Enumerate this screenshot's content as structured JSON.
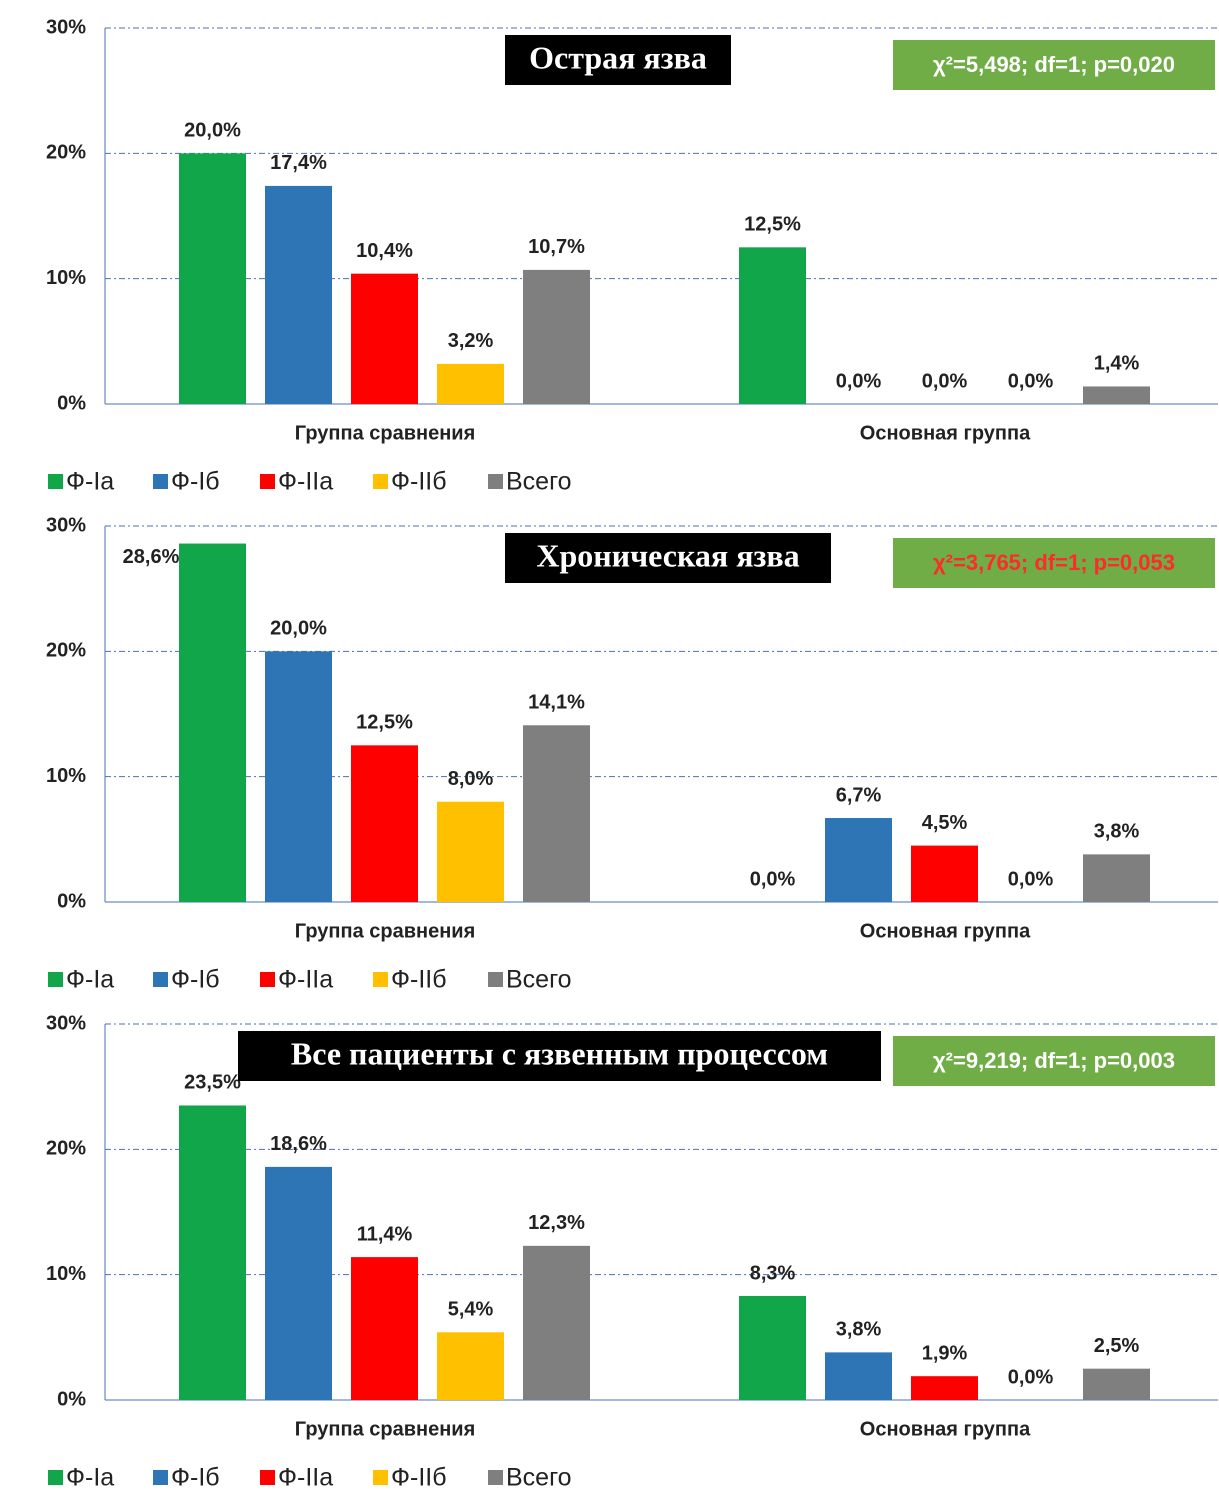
{
  "chart_data": [
    {
      "type": "bar",
      "title": "Острая язва",
      "annotation": "χ²=5,498; df=1; p=0,020",
      "annotation_color": "#ffffff",
      "categories": [
        "Группа сравнения",
        "Основная группа"
      ],
      "series": [
        {
          "name": "Ф-Iа",
          "color": "#12a64a",
          "values": [
            20.0,
            12.5
          ],
          "value_labels": [
            "20,0%",
            "12,5%"
          ]
        },
        {
          "name": "Ф-Iб",
          "color": "#2e75b6",
          "values": [
            17.4,
            0.0
          ],
          "value_labels": [
            "17,4%",
            "0,0%"
          ]
        },
        {
          "name": "Ф-IIа",
          "color": "#ff0000",
          "values": [
            10.4,
            0.0
          ],
          "value_labels": [
            "10,4%",
            "0,0%"
          ]
        },
        {
          "name": "Ф-IIб",
          "color": "#ffc000",
          "values": [
            3.2,
            0.0
          ],
          "value_labels": [
            "3,2%",
            "0,0%"
          ]
        },
        {
          "name": "Всего",
          "color": "#7f7f7f",
          "values": [
            10.7,
            1.4
          ],
          "value_labels": [
            "10,7%",
            "1,4%"
          ]
        }
      ],
      "ylim": [
        0,
        30
      ],
      "yticks": [
        {
          "value": 0,
          "label": "0%"
        },
        {
          "value": 10,
          "label": "10%"
        },
        {
          "value": 20,
          "label": "20%"
        },
        {
          "value": 30,
          "label": "30%"
        }
      ],
      "grid": true,
      "legend": "bottom"
    },
    {
      "type": "bar",
      "title": "Хроническая язва",
      "annotation": "χ²=3,765; df=1; p=0,053",
      "annotation_color": "#ff2a2a",
      "categories": [
        "Группа сравнения",
        "Основная группа"
      ],
      "series": [
        {
          "name": "Ф-Iа",
          "color": "#12a64a",
          "values": [
            28.6,
            0.0
          ],
          "value_labels": [
            "28,6%",
            "0,0%"
          ]
        },
        {
          "name": "Ф-Iб",
          "color": "#2e75b6",
          "values": [
            20.0,
            6.7
          ],
          "value_labels": [
            "20,0%",
            "6,7%"
          ]
        },
        {
          "name": "Ф-IIа",
          "color": "#ff0000",
          "values": [
            12.5,
            4.5
          ],
          "value_labels": [
            "12,5%",
            "4,5%"
          ]
        },
        {
          "name": "Ф-IIб",
          "color": "#ffc000",
          "values": [
            8.0,
            0.0
          ],
          "value_labels": [
            "8,0%",
            "0,0%"
          ]
        },
        {
          "name": "Всего",
          "color": "#7f7f7f",
          "values": [
            14.1,
            3.8
          ],
          "value_labels": [
            "14,1%",
            "3,8%"
          ]
        }
      ],
      "ylim": [
        0,
        30
      ],
      "yticks": [
        {
          "value": 0,
          "label": "0%"
        },
        {
          "value": 10,
          "label": "10%"
        },
        {
          "value": 20,
          "label": "20%"
        },
        {
          "value": 30,
          "label": "30%"
        }
      ],
      "grid": true,
      "legend": "bottom"
    },
    {
      "type": "bar",
      "title": "Все пациенты с язвенным процессом",
      "annotation": "χ²=9,219; df=1; p=0,003",
      "annotation_color": "#ffffff",
      "categories": [
        "Группа сравнения",
        "Основная группа"
      ],
      "series": [
        {
          "name": "Ф-Iа",
          "color": "#12a64a",
          "values": [
            23.5,
            8.3
          ],
          "value_labels": [
            "23,5%",
            "8,3%"
          ]
        },
        {
          "name": "Ф-Iб",
          "color": "#2e75b6",
          "values": [
            18.6,
            3.8
          ],
          "value_labels": [
            "18,6%",
            "3,8%"
          ]
        },
        {
          "name": "Ф-IIа",
          "color": "#ff0000",
          "values": [
            11.4,
            1.9
          ],
          "value_labels": [
            "11,4%",
            "1,9%"
          ]
        },
        {
          "name": "Ф-IIб",
          "color": "#ffc000",
          "values": [
            5.4,
            0.0
          ],
          "value_labels": [
            "5,4%",
            "0,0%"
          ]
        },
        {
          "name": "Всего",
          "color": "#7f7f7f",
          "values": [
            12.3,
            2.5
          ],
          "value_labels": [
            "12,3%",
            "2,5%"
          ]
        }
      ],
      "ylim": [
        0,
        30
      ],
      "yticks": [
        {
          "value": 0,
          "label": "0%"
        },
        {
          "value": 10,
          "label": "10%"
        },
        {
          "value": 20,
          "label": "20%"
        },
        {
          "value": 30,
          "label": "30%"
        }
      ],
      "grid": true,
      "legend": "bottom"
    }
  ]
}
